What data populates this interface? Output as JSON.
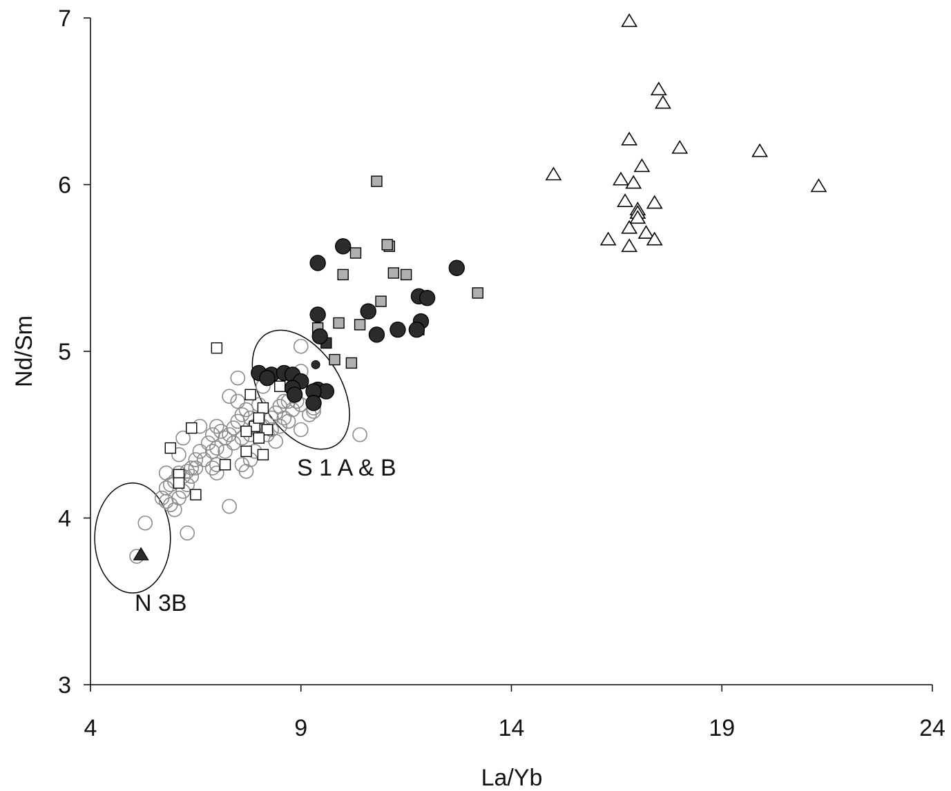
{
  "chart_data": {
    "type": "scatter",
    "xlabel": "La/Yb",
    "ylabel": "Nd/Sm",
    "xlim": [
      4,
      24
    ],
    "ylim": [
      3,
      7
    ],
    "xticks": [
      "4",
      "9",
      "14",
      "19",
      "24"
    ],
    "yticks": [
      "3",
      "4",
      "5",
      "6",
      "7"
    ],
    "grid": false,
    "legend": "none",
    "annotations": [
      "N 3B",
      "S 1 A & B"
    ],
    "ellipses": [
      {
        "label": "N 3B",
        "cx": 5.0,
        "cy": 3.88,
        "rx": 0.9,
        "ry": 0.33
      },
      {
        "label": "S 1 A & B",
        "cx": 9.0,
        "cy": 4.77,
        "rx": 1.05,
        "ry": 0.58,
        "rotation_deg": 58
      }
    ],
    "series": [
      {
        "marker": "circle-open-grey",
        "points": [
          [
            5.1,
            3.77
          ],
          [
            5.3,
            3.97
          ],
          [
            6.3,
            3.91
          ],
          [
            7.3,
            4.07
          ],
          [
            10.4,
            4.5
          ],
          [
            6.9,
            4.3
          ],
          [
            7.0,
            4.32
          ],
          [
            7.6,
            4.32
          ],
          [
            7.7,
            4.28
          ],
          [
            7.8,
            4.35
          ],
          [
            7.9,
            4.4
          ],
          [
            8.2,
            4.5
          ],
          [
            8.3,
            4.53
          ],
          [
            8.4,
            4.46
          ],
          [
            8.5,
            4.55
          ],
          [
            8.6,
            4.6
          ],
          [
            8.7,
            4.58
          ],
          [
            8.8,
            4.65
          ],
          [
            9.0,
            4.68
          ],
          [
            9.2,
            4.62
          ],
          [
            9.3,
            4.66
          ],
          [
            9.0,
            4.53
          ],
          [
            9.0,
            4.88
          ],
          [
            9.0,
            5.03
          ],
          [
            8.7,
            4.7
          ],
          [
            8.9,
            4.7
          ],
          [
            8.5,
            4.67
          ],
          [
            8.6,
            4.7
          ],
          [
            8.3,
            4.6
          ],
          [
            8.1,
            4.55
          ],
          [
            7.9,
            4.55
          ],
          [
            7.8,
            4.6
          ],
          [
            7.7,
            4.65
          ],
          [
            7.6,
            4.62
          ],
          [
            7.5,
            4.58
          ],
          [
            7.4,
            4.54
          ],
          [
            7.3,
            4.5
          ],
          [
            7.2,
            4.48
          ],
          [
            7.1,
            4.52
          ],
          [
            7.0,
            4.55
          ],
          [
            6.9,
            4.5
          ],
          [
            6.8,
            4.45
          ],
          [
            6.6,
            4.4
          ],
          [
            6.5,
            4.35
          ],
          [
            6.4,
            4.3
          ],
          [
            6.3,
            4.28
          ],
          [
            6.2,
            4.25
          ],
          [
            6.1,
            4.27
          ],
          [
            6.0,
            4.22
          ],
          [
            5.9,
            4.2
          ],
          [
            5.8,
            4.18
          ],
          [
            5.7,
            4.12
          ],
          [
            5.8,
            4.1
          ],
          [
            5.9,
            4.08
          ],
          [
            6.0,
            4.05
          ],
          [
            6.1,
            4.12
          ],
          [
            6.2,
            4.16
          ],
          [
            6.3,
            4.2
          ],
          [
            6.4,
            4.25
          ],
          [
            6.5,
            4.3
          ],
          [
            6.7,
            4.35
          ],
          [
            6.9,
            4.4
          ],
          [
            7.0,
            4.42
          ],
          [
            7.2,
            4.4
          ],
          [
            7.4,
            4.45
          ],
          [
            7.6,
            4.48
          ],
          [
            7.8,
            4.5
          ],
          [
            8.0,
            4.52
          ],
          [
            7.3,
            4.73
          ],
          [
            7.5,
            4.84
          ],
          [
            8.1,
            4.79
          ],
          [
            8.4,
            4.63
          ],
          [
            6.6,
            4.55
          ],
          [
            6.2,
            4.48
          ],
          [
            5.8,
            4.27
          ],
          [
            6.1,
            4.38
          ],
          [
            7.0,
            4.27
          ],
          [
            7.5,
            4.7
          ],
          [
            8.0,
            4.68
          ],
          [
            9.3,
            4.64
          ]
        ]
      },
      {
        "marker": "square-open",
        "points": [
          [
            7.0,
            5.02
          ],
          [
            8.0,
            4.87
          ],
          [
            8.5,
            4.79
          ],
          [
            7.8,
            4.74
          ],
          [
            8.1,
            4.66
          ],
          [
            7.9,
            4.55
          ],
          [
            8.2,
            4.53
          ],
          [
            8.0,
            4.48
          ],
          [
            7.7,
            4.4
          ],
          [
            7.7,
            4.52
          ],
          [
            8.1,
            4.38
          ],
          [
            6.4,
            4.54
          ],
          [
            5.9,
            4.42
          ],
          [
            6.1,
            4.26
          ],
          [
            6.1,
            4.21
          ],
          [
            6.5,
            4.14
          ],
          [
            7.2,
            4.32
          ],
          [
            8.0,
            4.6
          ]
        ]
      },
      {
        "marker": "square-grey",
        "points": [
          [
            10.8,
            6.02
          ],
          [
            11.1,
            5.63
          ],
          [
            11.05,
            5.64
          ],
          [
            10.3,
            5.59
          ],
          [
            10.0,
            5.46
          ],
          [
            11.2,
            5.47
          ],
          [
            11.5,
            5.46
          ],
          [
            10.9,
            5.3
          ],
          [
            13.2,
            5.35
          ],
          [
            9.4,
            5.14
          ],
          [
            9.9,
            5.17
          ],
          [
            10.4,
            5.16
          ],
          [
            11.8,
            5.13
          ],
          [
            9.8,
            4.95
          ],
          [
            10.2,
            4.93
          ]
        ]
      },
      {
        "marker": "square-dark",
        "points": [
          [
            9.6,
            5.05
          ]
        ]
      },
      {
        "marker": "circle-dark",
        "points": [
          [
            10.0,
            5.63
          ],
          [
            9.4,
            5.53
          ],
          [
            12.7,
            5.5
          ],
          [
            11.8,
            5.33
          ],
          [
            12.0,
            5.32
          ],
          [
            9.4,
            5.22
          ],
          [
            10.6,
            5.24
          ],
          [
            11.85,
            5.18
          ],
          [
            11.3,
            5.13
          ],
          [
            11.75,
            5.13
          ],
          [
            10.8,
            5.1
          ],
          [
            9.45,
            5.09
          ],
          [
            8.0,
            4.87
          ],
          [
            8.3,
            4.86
          ],
          [
            8.6,
            4.87
          ],
          [
            8.8,
            4.86
          ],
          [
            8.2,
            4.84
          ],
          [
            9.0,
            4.82
          ],
          [
            8.8,
            4.78
          ],
          [
            9.4,
            4.77
          ],
          [
            9.6,
            4.76
          ],
          [
            8.85,
            4.74
          ],
          [
            9.3,
            4.76
          ],
          [
            9.3,
            4.69
          ]
        ]
      },
      {
        "marker": "circle-dark-small",
        "points": [
          [
            9.35,
            4.92
          ]
        ]
      },
      {
        "marker": "triangle-dark",
        "points": [
          [
            5.2,
            3.78
          ]
        ]
      },
      {
        "marker": "triangle-open",
        "points": [
          [
            16.8,
            6.98
          ],
          [
            17.5,
            6.57
          ],
          [
            17.6,
            6.49
          ],
          [
            16.8,
            6.27
          ],
          [
            18.0,
            6.22
          ],
          [
            19.9,
            6.2
          ],
          [
            15.0,
            6.06
          ],
          [
            17.1,
            6.11
          ],
          [
            16.6,
            6.03
          ],
          [
            16.9,
            6.01
          ],
          [
            21.3,
            5.99
          ],
          [
            16.7,
            5.9
          ],
          [
            17.4,
            5.89
          ],
          [
            17.0,
            5.85
          ],
          [
            17.0,
            5.83
          ],
          [
            17.0,
            5.8
          ],
          [
            16.8,
            5.74
          ],
          [
            17.2,
            5.71
          ],
          [
            16.3,
            5.67
          ],
          [
            17.4,
            5.67
          ],
          [
            16.8,
            5.63
          ]
        ]
      }
    ]
  }
}
